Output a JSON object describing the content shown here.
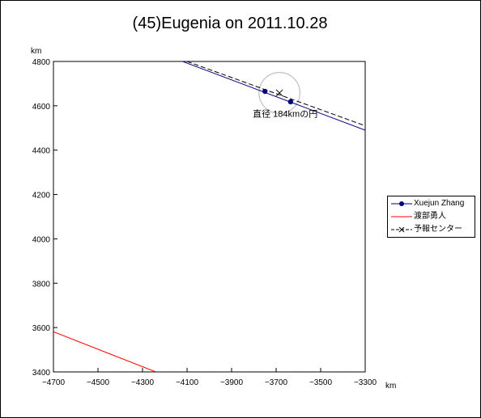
{
  "title": "(45)Eugenia on 2011.10.28",
  "chart_data": {
    "type": "line",
    "title": "(45)Eugenia on 2011.10.28",
    "xlabel": "km",
    "ylabel": "km",
    "xlim": [
      -4700,
      -3300
    ],
    "ylim": [
      3400,
      4800
    ],
    "xticks": [
      -4700,
      -4500,
      -4300,
      -4100,
      -3900,
      -3700,
      -3500,
      -3300
    ],
    "yticks": [
      3400,
      3600,
      3800,
      4000,
      4200,
      4400,
      4600,
      4800
    ],
    "xtick_labels": [
      "−4700",
      "−4500",
      "−4300",
      "−4100",
      "−3900",
      "−3700",
      "−3500",
      "−3300"
    ],
    "ytick_labels": [
      "3400",
      "3600",
      "3800",
      "4000",
      "4200",
      "4400",
      "4600",
      "4800"
    ],
    "grid": false,
    "legend_position": "right",
    "series": [
      {
        "name": "Xuejun Zhang",
        "color": "#000080",
        "style": "solid",
        "line": [
          [
            -4120,
            4800
          ],
          [
            -3300,
            4490
          ]
        ],
        "points": [
          [
            -3750,
            4665
          ],
          [
            -3635,
            4618
          ]
        ]
      },
      {
        "name": "渡部勇人",
        "color": "#ff0000",
        "style": "solid",
        "line": [
          [
            -4700,
            3581
          ],
          [
            -4240,
            3400
          ]
        ]
      },
      {
        "name": "予報センター",
        "color": "#000000",
        "style": "dashed",
        "line": [
          [
            -4100,
            4800
          ],
          [
            -3300,
            4510
          ]
        ],
        "points": [
          [
            -3685,
            4658
          ]
        ]
      }
    ],
    "circle": {
      "center": [
        -3685,
        4658
      ],
      "diameter": 184,
      "color": "#c0c0c0",
      "label": "直径 184kmの円",
      "label_position": [
        -3805,
        4550
      ]
    }
  }
}
